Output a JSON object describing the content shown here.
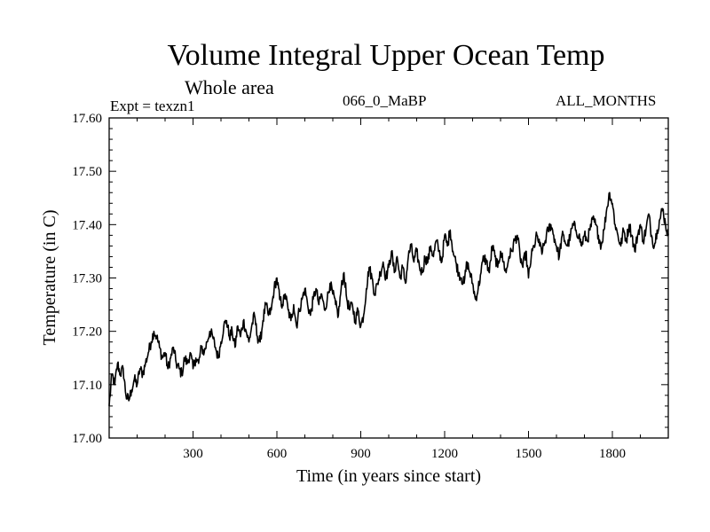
{
  "header": {
    "subtitle": "Whole area",
    "expt_label": "Expt = texzn1",
    "run_label": "066_0_MaBP",
    "months_label": "ALL_MONTHS"
  },
  "chart_data": {
    "type": "line",
    "title": "Volume Integral Upper Ocean Temp",
    "xlabel": "Time (in years since start)",
    "ylabel": "Temperature (in C)",
    "xlim": [
      0,
      2000
    ],
    "ylim": [
      17.0,
      17.6
    ],
    "xticks": [
      300,
      600,
      900,
      1200,
      1500,
      1800
    ],
    "xtick_labels": [
      "300",
      "600",
      "900",
      "1200",
      "1500",
      "1800"
    ],
    "yticks": [
      17.0,
      17.1,
      17.2,
      17.3,
      17.4,
      17.5,
      17.6
    ],
    "ytick_labels": [
      "17.00",
      "17.10",
      "17.20",
      "17.30",
      "17.40",
      "17.50",
      "17.60"
    ],
    "series": [
      {
        "name": "Volume Integral Upper Ocean Temp",
        "x": [
          0,
          10,
          20,
          30,
          40,
          50,
          60,
          70,
          80,
          90,
          100,
          110,
          120,
          130,
          140,
          150,
          160,
          170,
          180,
          190,
          200,
          210,
          220,
          230,
          240,
          250,
          260,
          270,
          280,
          290,
          300,
          310,
          320,
          330,
          340,
          350,
          360,
          370,
          380,
          390,
          400,
          410,
          420,
          430,
          440,
          450,
          460,
          470,
          480,
          490,
          500,
          510,
          520,
          530,
          540,
          550,
          560,
          570,
          580,
          590,
          600,
          610,
          620,
          630,
          640,
          650,
          660,
          670,
          680,
          690,
          700,
          710,
          720,
          730,
          740,
          750,
          760,
          770,
          780,
          790,
          800,
          810,
          820,
          830,
          840,
          850,
          860,
          870,
          880,
          890,
          900,
          910,
          920,
          930,
          940,
          950,
          960,
          970,
          980,
          990,
          1000,
          1010,
          1020,
          1030,
          1040,
          1050,
          1060,
          1070,
          1080,
          1090,
          1100,
          1110,
          1120,
          1130,
          1140,
          1150,
          1160,
          1170,
          1180,
          1190,
          1200,
          1210,
          1220,
          1230,
          1240,
          1250,
          1260,
          1270,
          1280,
          1290,
          1300,
          1310,
          1320,
          1330,
          1340,
          1350,
          1360,
          1370,
          1380,
          1390,
          1400,
          1410,
          1420,
          1430,
          1440,
          1450,
          1460,
          1470,
          1480,
          1490,
          1500,
          1510,
          1520,
          1530,
          1540,
          1550,
          1560,
          1570,
          1580,
          1590,
          1600,
          1610,
          1620,
          1630,
          1640,
          1650,
          1660,
          1670,
          1680,
          1690,
          1700,
          1710,
          1720,
          1730,
          1740,
          1750,
          1760,
          1770,
          1780,
          1790,
          1800,
          1810,
          1820,
          1830,
          1840,
          1850,
          1860,
          1870,
          1880,
          1890,
          1900,
          1910,
          1920,
          1930,
          1940,
          1950,
          1960,
          1970,
          1980,
          1990,
          2000
        ],
        "values": [
          17.06,
          17.12,
          17.1,
          17.14,
          17.12,
          17.13,
          17.08,
          17.07,
          17.09,
          17.11,
          17.1,
          17.13,
          17.12,
          17.14,
          17.16,
          17.18,
          17.2,
          17.19,
          17.17,
          17.15,
          17.16,
          17.13,
          17.15,
          17.17,
          17.14,
          17.13,
          17.12,
          17.15,
          17.14,
          17.16,
          17.13,
          17.15,
          17.14,
          17.17,
          17.16,
          17.18,
          17.2,
          17.19,
          17.17,
          17.15,
          17.18,
          17.21,
          17.22,
          17.19,
          17.2,
          17.17,
          17.21,
          17.19,
          17.22,
          17.2,
          17.18,
          17.21,
          17.23,
          17.19,
          17.18,
          17.22,
          17.25,
          17.23,
          17.24,
          17.28,
          17.3,
          17.26,
          17.25,
          17.27,
          17.24,
          17.22,
          17.25,
          17.21,
          17.24,
          17.26,
          17.28,
          17.25,
          17.23,
          17.26,
          17.28,
          17.25,
          17.27,
          17.24,
          17.26,
          17.29,
          17.27,
          17.25,
          17.23,
          17.28,
          17.31,
          17.26,
          17.24,
          17.25,
          17.22,
          17.24,
          17.21,
          17.23,
          17.28,
          17.32,
          17.3,
          17.27,
          17.29,
          17.31,
          17.33,
          17.3,
          17.32,
          17.35,
          17.31,
          17.34,
          17.3,
          17.32,
          17.29,
          17.34,
          17.36,
          17.33,
          17.35,
          17.32,
          17.31,
          17.34,
          17.33,
          17.36,
          17.34,
          17.37,
          17.35,
          17.33,
          17.38,
          17.36,
          17.39,
          17.35,
          17.33,
          17.31,
          17.3,
          17.29,
          17.33,
          17.31,
          17.29,
          17.26,
          17.28,
          17.31,
          17.34,
          17.33,
          17.31,
          17.36,
          17.34,
          17.32,
          17.35,
          17.33,
          17.31,
          17.34,
          17.35,
          17.37,
          17.38,
          17.34,
          17.32,
          17.35,
          17.3,
          17.34,
          17.36,
          17.38,
          17.36,
          17.35,
          17.37,
          17.39,
          17.4,
          17.38,
          17.36,
          17.34,
          17.38,
          17.37,
          17.36,
          17.38,
          17.4,
          17.39,
          17.38,
          17.36,
          17.38,
          17.37,
          17.39,
          17.41,
          17.4,
          17.38,
          17.36,
          17.39,
          17.43,
          17.46,
          17.44,
          17.4,
          17.38,
          17.36,
          17.39,
          17.37,
          17.4,
          17.38,
          17.35,
          17.38,
          17.4,
          17.37,
          17.39,
          17.42,
          17.38,
          17.36,
          17.39,
          17.41,
          17.43,
          17.4,
          17.38
        ]
      }
    ]
  }
}
